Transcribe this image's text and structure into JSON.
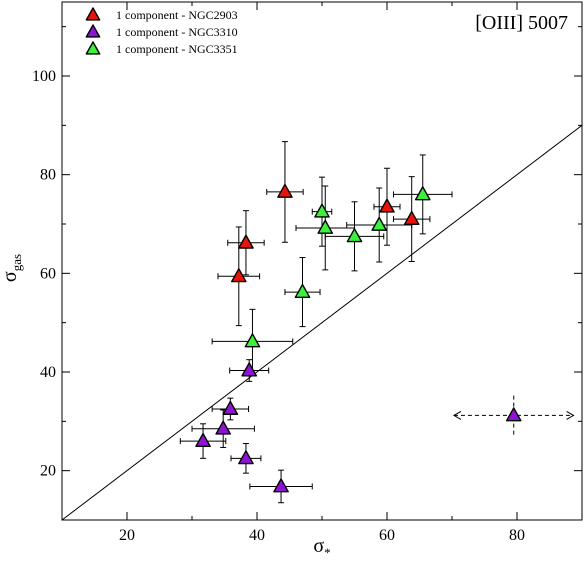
{
  "chart_data": {
    "type": "scatter",
    "annotation": "[OIII] 5007",
    "xlabel": {
      "main": "σ",
      "sub": "*"
    },
    "ylabel": {
      "main": "σ",
      "sub": "gas"
    },
    "xlim": [
      10,
      90
    ],
    "ylim": [
      10,
      115
    ],
    "xticks": [
      20,
      40,
      60,
      80
    ],
    "yticks": [
      20,
      40,
      60,
      80,
      100
    ],
    "grid": false,
    "legend_position": "top-left",
    "reference_line": {
      "x": [
        10,
        90
      ],
      "y": [
        10,
        90
      ]
    },
    "series": [
      {
        "name": "1 component - NGC2903",
        "color": "#e8140c",
        "points": [
          {
            "x": 44.3,
            "y": 76.5,
            "xerr": 2.8,
            "yerr": 10.2
          },
          {
            "x": 38.3,
            "y": 66.2,
            "xerr": 2.8,
            "yerr": 6.5
          },
          {
            "x": 37.2,
            "y": 59.4,
            "xerr": 3.2,
            "yerr": 10.0
          },
          {
            "x": 60.0,
            "y": 73.5,
            "xerr": 2.0,
            "yerr": 7.8
          },
          {
            "x": 63.8,
            "y": 71.0,
            "xerr": 2.8,
            "yerr": 8.6
          }
        ]
      },
      {
        "name": "1 component - NGC3310",
        "color": "#8c14d2",
        "points": [
          {
            "x": 38.8,
            "y": 40.3,
            "xerr": 3.0,
            "yerr": 2.2
          },
          {
            "x": 35.9,
            "y": 32.5,
            "xerr": 2.8,
            "yerr": 2.2
          },
          {
            "x": 34.8,
            "y": 28.5,
            "xerr": 4.8,
            "yerr": 3.8
          },
          {
            "x": 31.7,
            "y": 26.0,
            "xerr": 3.5,
            "yerr": 3.5
          },
          {
            "x": 38.3,
            "y": 22.5,
            "xerr": 2.3,
            "yerr": 3.0
          },
          {
            "x": 43.7,
            "y": 16.8,
            "xerr": 4.8,
            "yerr": 3.3
          }
        ]
      },
      {
        "name": "1 component - NGC3351",
        "color": "#3cf03c",
        "points": [
          {
            "x": 39.3,
            "y": 46.2,
            "xerr": 6.2,
            "yerr": 6.5
          },
          {
            "x": 47.0,
            "y": 56.2,
            "xerr": 2.7,
            "yerr": 7.0
          },
          {
            "x": 50.0,
            "y": 72.5,
            "xerr": 1.5,
            "yerr": 7.0
          },
          {
            "x": 50.5,
            "y": 69.2,
            "xerr": 4.5,
            "yerr": 8.5
          },
          {
            "x": 55.0,
            "y": 67.5,
            "xerr": 4.5,
            "yerr": 7.0
          },
          {
            "x": 58.8,
            "y": 69.8,
            "xerr": 5.0,
            "yerr": 7.5
          },
          {
            "x": 65.5,
            "y": 76.0,
            "xerr": 4.5,
            "yerr": 8.0
          }
        ]
      },
      {
        "name": "",
        "color": "#8c14d2",
        "dashed": true,
        "points": [
          {
            "x": 79.5,
            "y": 31.2,
            "xerr": 9.2,
            "yerr": 4.0
          }
        ]
      }
    ]
  }
}
